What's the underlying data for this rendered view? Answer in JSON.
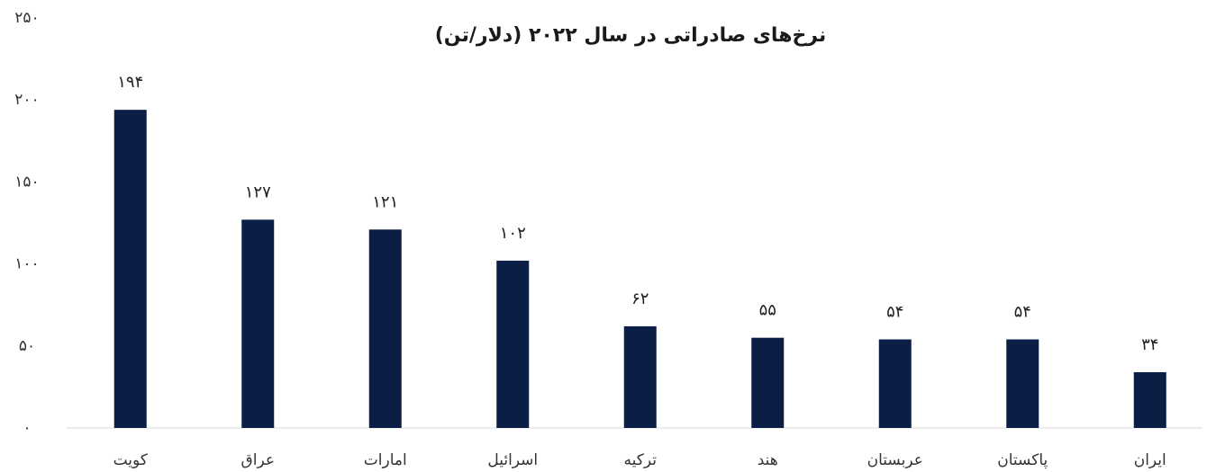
{
  "chart_data": {
    "type": "bar",
    "title": "نرخ‌های صادراتی در سال ۲۰۲۲ (دلار/تن)",
    "categories": [
      "کویت",
      "عراق",
      "امارات",
      "اسرائیل",
      "ترکیه",
      "هند",
      "عربستان",
      "پاکستان",
      "ایران"
    ],
    "values": [
      194,
      127,
      121,
      102,
      62,
      55,
      54,
      54,
      34
    ],
    "value_labels": [
      "۱۹۴",
      "۱۲۷",
      "۱۲۱",
      "۱۰۲",
      "۶۲",
      "۵۵",
      "۵۴",
      "۵۴",
      "۳۴"
    ],
    "color": "#0b1e45",
    "ylim": [
      0,
      250
    ],
    "yticks": [
      {
        "value": 0,
        "label": "۰"
      },
      {
        "value": 50,
        "label": "۵۰"
      },
      {
        "value": 100,
        "label": "۱۰۰"
      },
      {
        "value": 150,
        "label": "۱۵۰"
      },
      {
        "value": 200,
        "label": "۲۰۰"
      },
      {
        "value": 250,
        "label": "۲۵۰"
      }
    ],
    "grid": false
  }
}
